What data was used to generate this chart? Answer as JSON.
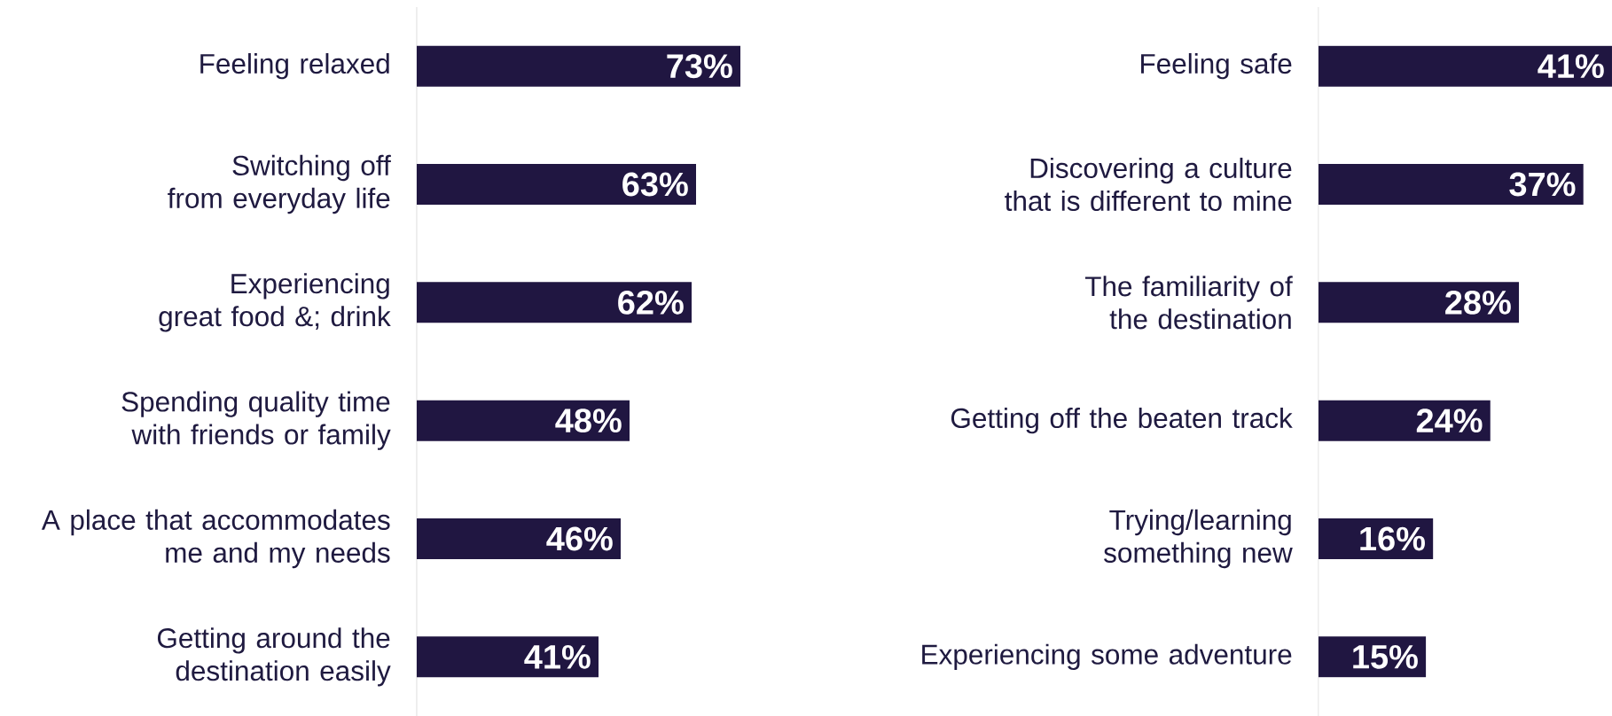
{
  "chart_data": [
    {
      "type": "bar",
      "orientation": "horizontal",
      "categories": [
        "Feeling relaxed",
        "Switching off from everyday life",
        "Experiencing great food &; drink",
        "Spending quality time with friends or family",
        "A place that accommodates me and my needs",
        "Getting around the destination easily"
      ],
      "values": [
        73,
        63,
        62,
        48,
        46,
        41
      ],
      "value_labels": [
        "73%",
        "63%",
        "62%",
        "48%",
        "46%",
        "41%"
      ],
      "color": "#201641"
    },
    {
      "type": "bar",
      "orientation": "horizontal",
      "categories": [
        "Feeling safe",
        "Discovering a culture that is different to mine",
        "The familiarity of the destination",
        "Getting off the beaten track",
        "Trying/learning something new",
        "Experiencing some adventure"
      ],
      "values": [
        41,
        37,
        28,
        24,
        16,
        15
      ],
      "value_labels": [
        "41%",
        "37%",
        "28%",
        "24%",
        "16%",
        "15%"
      ],
      "color": "#201641"
    }
  ]
}
